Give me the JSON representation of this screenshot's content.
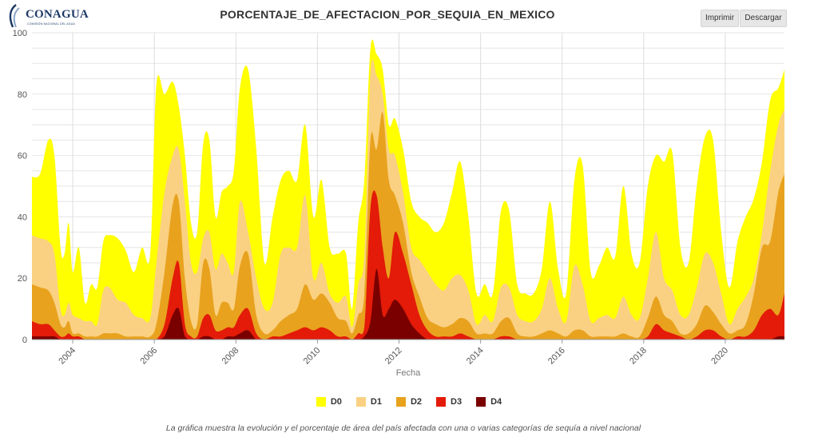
{
  "header": {
    "logo_text": "CONAGUA",
    "logo_subtext": "COMISIÓN NACIONAL DEL AGUA",
    "title": "PORCENTAJE_DE_AFECTACION_POR_SEQUIA_EN_MEXICO",
    "print_label": "Imprimir",
    "download_label": "Descargar"
  },
  "footer": {
    "caption": "La gráfica muestra la evolución y el porcentaje de área del país afectada con una o varias categorías de sequía a nivel nacional"
  },
  "colors": {
    "D0": "#ffff00",
    "D1": "#fad182",
    "D2": "#e8a21e",
    "D3": "#e31b08",
    "D4": "#7a0000",
    "grid": "#e6e6e6"
  },
  "chart_data": {
    "type": "area",
    "title": "PORCENTAJE_DE_AFECTACION_POR_SEQUIA_EN_MEXICO",
    "xlabel": "Fecha",
    "ylabel": "",
    "xlim": [
      2003.0,
      2021.45
    ],
    "ylim": [
      0,
      100
    ],
    "yticks": [
      0,
      20,
      40,
      60,
      80,
      100
    ],
    "xticks": [
      "2004",
      "2006",
      "2008",
      "2010",
      "2012",
      "2014",
      "2016",
      "2018",
      "2020"
    ],
    "legend_position": "bottom",
    "grid": true,
    "x": [
      2003.0,
      2003.2,
      2003.4,
      2003.55,
      2003.7,
      2003.8,
      2003.9,
      2004.0,
      2004.15,
      2004.3,
      2004.45,
      2004.6,
      2004.75,
      2004.9,
      2005.1,
      2005.3,
      2005.5,
      2005.7,
      2005.9,
      2006.05,
      2006.25,
      2006.45,
      2006.6,
      2006.75,
      2006.9,
      2007.05,
      2007.2,
      2007.35,
      2007.5,
      2007.65,
      2007.8,
      2007.95,
      2008.1,
      2008.3,
      2008.5,
      2008.7,
      2008.9,
      2009.1,
      2009.3,
      2009.5,
      2009.7,
      2009.9,
      2010.1,
      2010.3,
      2010.5,
      2010.7,
      2010.85,
      2011.0,
      2011.15,
      2011.3,
      2011.45,
      2011.6,
      2011.75,
      2011.9,
      2012.1,
      2012.3,
      2012.5,
      2012.7,
      2012.9,
      2013.1,
      2013.3,
      2013.5,
      2013.7,
      2013.9,
      2014.1,
      2014.3,
      2014.5,
      2014.7,
      2014.9,
      2015.1,
      2015.3,
      2015.5,
      2015.7,
      2015.9,
      2016.1,
      2016.3,
      2016.5,
      2016.7,
      2016.9,
      2017.1,
      2017.3,
      2017.5,
      2017.7,
      2017.9,
      2018.1,
      2018.3,
      2018.5,
      2018.7,
      2018.9,
      2019.1,
      2019.3,
      2019.5,
      2019.7,
      2019.9,
      2020.1,
      2020.3,
      2020.5,
      2020.7,
      2020.9,
      2021.1,
      2021.3,
      2021.45
    ],
    "series": [
      {
        "name": "D0",
        "values": [
          53,
          54,
          65,
          60,
          30,
          28,
          38,
          22,
          30,
          12,
          18,
          17,
          32,
          34,
          33,
          29,
          22,
          30,
          28,
          83,
          80,
          84,
          76,
          60,
          38,
          35,
          64,
          65,
          40,
          48,
          50,
          55,
          82,
          88,
          62,
          25,
          40,
          52,
          55,
          52,
          70,
          40,
          52,
          30,
          28,
          28,
          10,
          38,
          52,
          95,
          93,
          88,
          70,
          72,
          62,
          45,
          40,
          38,
          35,
          38,
          48,
          58,
          40,
          15,
          18,
          15,
          42,
          42,
          18,
          15,
          15,
          23,
          45,
          23,
          15,
          52,
          57,
          22,
          24,
          30,
          27,
          50,
          28,
          25,
          50,
          60,
          58,
          61,
          30,
          25,
          50,
          66,
          65,
          35,
          17,
          32,
          40,
          46,
          58,
          78,
          82,
          88
        ]
      },
      {
        "name": "D1",
        "values": [
          34,
          33,
          32,
          28,
          10,
          8,
          12,
          8,
          7,
          6,
          6,
          5,
          16,
          17,
          13,
          12,
          8,
          7,
          7,
          25,
          48,
          60,
          62,
          45,
          25,
          22,
          33,
          35,
          23,
          28,
          25,
          22,
          45,
          35,
          20,
          10,
          12,
          28,
          30,
          30,
          47,
          20,
          25,
          15,
          12,
          14,
          4,
          18,
          28,
          87,
          86,
          80,
          62,
          60,
          48,
          30,
          26,
          22,
          18,
          16,
          20,
          21,
          16,
          5,
          8,
          6,
          17,
          17,
          8,
          6,
          6,
          10,
          20,
          10,
          6,
          24,
          18,
          6,
          7,
          8,
          7,
          14,
          8,
          7,
          20,
          35,
          20,
          16,
          8,
          8,
          17,
          28,
          25,
          15,
          5,
          10,
          14,
          20,
          35,
          55,
          70,
          75
        ]
      },
      {
        "name": "D2",
        "values": [
          18,
          17,
          16,
          12,
          5,
          4,
          6,
          2,
          2,
          1,
          1,
          1,
          2,
          2,
          2,
          1,
          1,
          1,
          1,
          5,
          22,
          44,
          45,
          20,
          6,
          5,
          25,
          23,
          8,
          12,
          12,
          10,
          24,
          28,
          8,
          2,
          3,
          6,
          8,
          10,
          18,
          13,
          15,
          12,
          7,
          6,
          2,
          8,
          15,
          65,
          62,
          74,
          52,
          47,
          38,
          22,
          14,
          7,
          5,
          4,
          5,
          7,
          6,
          2,
          2,
          2,
          6,
          7,
          2,
          1,
          1,
          2,
          3,
          2,
          1,
          3,
          3,
          1,
          1,
          1,
          1,
          2,
          1,
          1,
          7,
          14,
          8,
          6,
          2,
          2,
          5,
          11,
          9,
          5,
          2,
          3,
          5,
          15,
          30,
          32,
          48,
          54
        ]
      },
      {
        "name": "D3",
        "values": [
          6,
          5,
          5,
          3,
          1,
          1,
          2,
          1,
          1,
          0,
          0,
          0,
          0,
          0,
          0,
          0,
          0,
          0,
          0,
          0,
          5,
          20,
          25,
          5,
          1,
          1,
          7,
          8,
          3,
          3,
          4,
          4,
          8,
          10,
          2,
          0,
          1,
          1,
          2,
          3,
          4,
          3,
          4,
          3,
          1,
          1,
          0,
          2,
          4,
          43,
          47,
          30,
          20,
          35,
          28,
          18,
          8,
          3,
          1,
          1,
          1,
          2,
          1,
          0,
          0,
          0,
          1,
          1,
          0,
          0,
          0,
          0,
          0,
          0,
          0,
          0,
          0,
          0,
          0,
          0,
          0,
          0,
          0,
          0,
          1,
          5,
          3,
          2,
          1,
          0,
          1,
          3,
          3,
          1,
          0,
          1,
          1,
          3,
          8,
          10,
          8,
          15
        ]
      },
      {
        "name": "D4",
        "values": [
          1,
          1,
          1,
          1,
          0,
          0,
          0,
          0,
          0,
          0,
          0,
          0,
          0,
          0,
          0,
          0,
          0,
          0,
          0,
          0,
          1,
          8,
          10,
          1,
          0,
          0,
          1,
          1,
          0,
          0,
          1,
          1,
          2,
          3,
          0,
          0,
          0,
          0,
          0,
          0,
          0,
          0,
          0,
          0,
          0,
          0,
          0,
          0,
          1,
          6,
          23,
          8,
          10,
          13,
          10,
          5,
          2,
          0,
          0,
          0,
          0,
          0,
          0,
          0,
          0,
          0,
          0,
          0,
          0,
          0,
          0,
          0,
          0,
          0,
          0,
          0,
          0,
          0,
          0,
          0,
          0,
          0,
          0,
          0,
          0,
          0,
          0,
          0,
          0,
          0,
          0,
          0,
          0,
          0,
          0,
          0,
          0,
          0,
          0,
          0,
          1,
          1
        ]
      }
    ]
  }
}
